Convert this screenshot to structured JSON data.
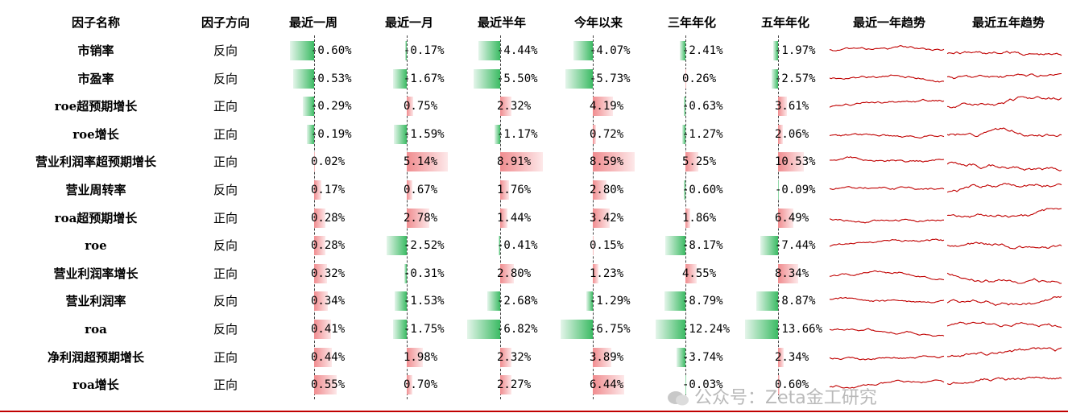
{
  "headers": {
    "name": "因子名称",
    "direction": "因子方向",
    "w1": "最近一周",
    "m1": "最近一月",
    "half": "最近半年",
    "ytd": "今年以来",
    "y3": "三年年化",
    "y5": "五年年化",
    "trend1": "最近一年趋势",
    "trend5": "最近五年趋势"
  },
  "chart_data": {
    "type": "table",
    "columns": [
      "因子名称",
      "因子方向",
      "最近一周",
      "最近一月",
      "最近半年",
      "今年以来",
      "三年年化",
      "五年年化",
      "最近一年趋势",
      "最近五年趋势"
    ],
    "value_columns": [
      "w1",
      "m1",
      "half",
      "ytd",
      "y3",
      "y5"
    ],
    "units": "%",
    "rows": [
      {
        "name": "市销率",
        "direction": "反向",
        "w1": -0.6,
        "m1": -0.17,
        "half": -4.44,
        "ytd": -4.07,
        "y3": -2.41,
        "y5": -1.97
      },
      {
        "name": "市盈率",
        "direction": "反向",
        "w1": -0.53,
        "m1": -1.67,
        "half": -5.5,
        "ytd": -5.73,
        "y3": 0.26,
        "y5": -2.57
      },
      {
        "name": "roe超预期增长",
        "direction": "正向",
        "w1": -0.29,
        "m1": 0.75,
        "half": 2.32,
        "ytd": 4.19,
        "y3": -0.63,
        "y5": 3.61
      },
      {
        "name": "roe增长",
        "direction": "正向",
        "w1": -0.19,
        "m1": -1.59,
        "half": -1.17,
        "ytd": 0.72,
        "y3": -1.27,
        "y5": 2.06
      },
      {
        "name": "营业利润率超预期增长",
        "direction": "正向",
        "w1": 0.02,
        "m1": 5.14,
        "half": 8.91,
        "ytd": 8.59,
        "y3": 5.25,
        "y5": 10.53
      },
      {
        "name": "营业周转率",
        "direction": "反向",
        "w1": 0.17,
        "m1": 0.67,
        "half": 1.76,
        "ytd": 2.8,
        "y3": -0.6,
        "y5": -0.09
      },
      {
        "name": "roa超预期增长",
        "direction": "正向",
        "w1": 0.28,
        "m1": 2.78,
        "half": 1.44,
        "ytd": 3.42,
        "y3": 1.86,
        "y5": 6.49
      },
      {
        "name": "roe",
        "direction": "反向",
        "w1": 0.28,
        "m1": -2.52,
        "half": -0.41,
        "ytd": 0.15,
        "y3": -8.17,
        "y5": -7.44
      },
      {
        "name": "营业利润率增长",
        "direction": "正向",
        "w1": 0.32,
        "m1": -0.31,
        "half": 2.8,
        "ytd": 1.23,
        "y3": 4.55,
        "y5": 8.34
      },
      {
        "name": "营业利润率",
        "direction": "反向",
        "w1": 0.34,
        "m1": -1.53,
        "half": -2.68,
        "ytd": -1.29,
        "y3": -8.79,
        "y5": -8.87
      },
      {
        "name": "roa",
        "direction": "反向",
        "w1": 0.41,
        "m1": -1.75,
        "half": -6.82,
        "ytd": -6.75,
        "y3": -12.24,
        "y5": -13.66
      },
      {
        "name": "净利润超预期增长",
        "direction": "正向",
        "w1": 0.44,
        "m1": 1.98,
        "half": 2.32,
        "ytd": 3.89,
        "y3": -3.74,
        "y5": 2.34
      },
      {
        "name": "roa增长",
        "direction": "正向",
        "w1": 0.55,
        "m1": 0.7,
        "half": 2.27,
        "ytd": 6.44,
        "y3": -0.03,
        "y5": 0.6
      }
    ],
    "trend_color": "#c00000",
    "bar_colors": {
      "positive": "#f08c8f",
      "negative": "#3cbb64"
    }
  },
  "watermark": "公众号：Zeta金工研究"
}
